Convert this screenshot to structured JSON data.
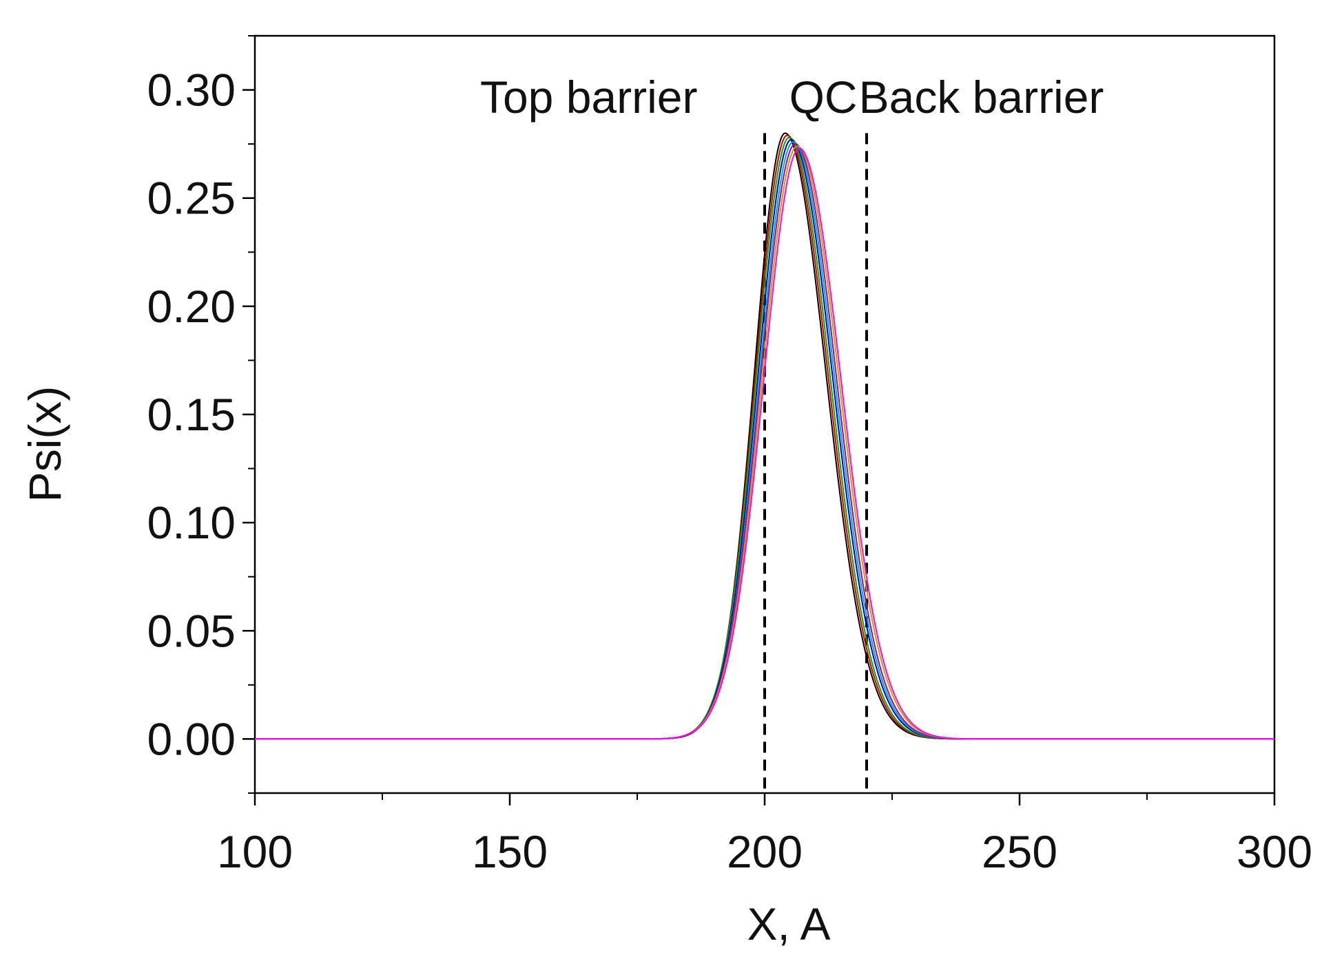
{
  "chart_data": {
    "type": "line",
    "title": "",
    "xlabel": "X, A",
    "ylabel": "Psi(x)",
    "xlim": [
      100,
      300
    ],
    "ylim": [
      -0.025,
      0.325
    ],
    "x_ticks": [
      100,
      150,
      200,
      250,
      300
    ],
    "x_tick_labels": [
      "100",
      "150",
      "200",
      "250",
      "300"
    ],
    "y_ticks": [
      0.0,
      0.05,
      0.1,
      0.15,
      0.2,
      0.25,
      0.3
    ],
    "y_tick_labels": [
      "0.00",
      "0.05",
      "0.10",
      "0.15",
      "0.20",
      "0.25",
      "0.30"
    ],
    "grid": false,
    "boundaries": [
      {
        "x": 200,
        "style": "dashed",
        "color": "#000000",
        "y_top": 0.28
      },
      {
        "x": 220,
        "style": "dashed",
        "color": "#000000",
        "y_top": 0.28
      }
    ],
    "annotations": [
      {
        "text": "Top barrier",
        "x": 165.5,
        "y": 0.297
      },
      {
        "text": "QC",
        "x": 211.5,
        "y": 0.297
      },
      {
        "text": "Back barrier",
        "x": 242.5,
        "y": 0.297
      }
    ],
    "series": [
      {
        "color": "#000000",
        "peak_x": 204.0,
        "peak_y": 0.28,
        "width_left": 6.0,
        "width_right": 8.0
      },
      {
        "color": "#cc0000",
        "peak_x": 204.4,
        "peak_y": 0.279,
        "width_left": 6.2,
        "width_right": 8.0
      },
      {
        "color": "#00aa00",
        "peak_x": 204.8,
        "peak_y": 0.278,
        "width_left": 6.4,
        "width_right": 8.0
      },
      {
        "color": "#0000cc",
        "peak_x": 205.2,
        "peak_y": 0.277,
        "width_left": 6.5,
        "width_right": 8.1
      },
      {
        "color": "#00aaaa",
        "peak_x": 205.6,
        "peak_y": 0.276,
        "width_left": 6.6,
        "width_right": 8.1
      },
      {
        "color": "#aa00aa",
        "peak_x": 206.0,
        "peak_y": 0.275,
        "width_left": 6.8,
        "width_right": 8.1
      },
      {
        "color": "#aaaa00",
        "peak_x": 206.4,
        "peak_y": 0.274,
        "width_left": 6.9,
        "width_right": 8.2
      },
      {
        "color": "#ff00ff",
        "peak_x": 206.8,
        "peak_y": 0.273,
        "width_left": 7.0,
        "width_right": 8.2
      }
    ]
  }
}
